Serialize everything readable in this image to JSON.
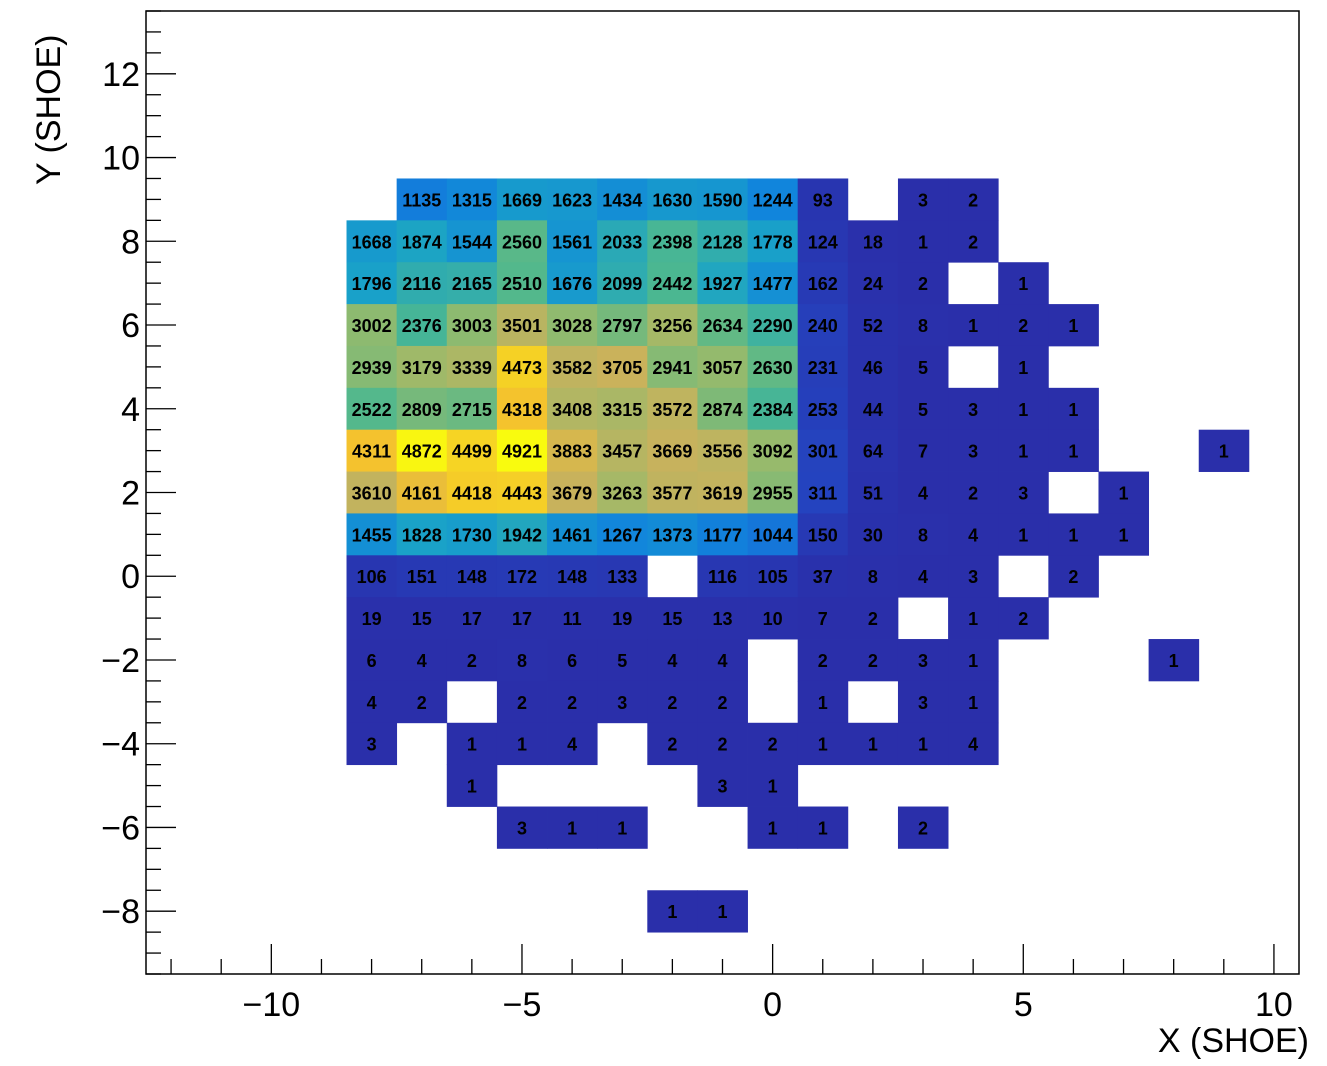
{
  "chart_data": {
    "type": "heatmap",
    "title": "",
    "xlabel": "X (SHOE)",
    "ylabel": "Y (SHOE)",
    "xlim": [
      -12.5,
      10.5
    ],
    "ylim": [
      -9.5,
      13.5
    ],
    "x_ticks": [
      -10,
      -5,
      0,
      5,
      10
    ],
    "y_ticks": [
      -8,
      -6,
      -4,
      -2,
      0,
      2,
      4,
      6,
      8,
      10,
      12
    ],
    "x_tick_labels": [
      "−10",
      "−5",
      "0",
      "5",
      "10"
    ],
    "y_tick_labels": [
      "−8",
      "−6",
      "−4",
      "−2",
      "0",
      "2",
      "4",
      "6",
      "8",
      "10",
      "12"
    ],
    "bin_width": 1,
    "bin_height": 1,
    "colormap": [
      "#2a2faa",
      "#1f57d3",
      "#1184dc",
      "#1aa3c7",
      "#4db88f",
      "#96ba6c",
      "#c9b25c",
      "#f4c22e",
      "#f9fb0e"
    ],
    "z_max": 4921,
    "grid": false,
    "rows": [
      {
        "y": 9,
        "x": [
          -7,
          -6,
          -5,
          -4,
          -3,
          -2,
          -1,
          0,
          1,
          3,
          4
        ],
        "v": [
          1135,
          1315,
          1669,
          1623,
          1434,
          1630,
          1590,
          1244,
          93,
          3,
          2
        ]
      },
      {
        "y": 8,
        "x": [
          -8,
          -7,
          -6,
          -5,
          -4,
          -3,
          -2,
          -1,
          0,
          1,
          2,
          3,
          4
        ],
        "v": [
          1668,
          1874,
          1544,
          2560,
          1561,
          2033,
          2398,
          2128,
          1778,
          124,
          18,
          1,
          2
        ]
      },
      {
        "y": 7,
        "x": [
          -8,
          -7,
          -6,
          -5,
          -4,
          -3,
          -2,
          -1,
          0,
          1,
          2,
          3,
          5
        ],
        "v": [
          1796,
          2116,
          2165,
          2510,
          1676,
          2099,
          2442,
          1927,
          1477,
          162,
          24,
          2,
          1
        ]
      },
      {
        "y": 6,
        "x": [
          -8,
          -7,
          -6,
          -5,
          -4,
          -3,
          -2,
          -1,
          0,
          1,
          2,
          3,
          4,
          5,
          6
        ],
        "v": [
          3002,
          2376,
          3003,
          3501,
          3028,
          2797,
          3256,
          2634,
          2290,
          240,
          52,
          8,
          1,
          2,
          1
        ]
      },
      {
        "y": 5,
        "x": [
          -8,
          -7,
          -6,
          -5,
          -4,
          -3,
          -2,
          -1,
          0,
          1,
          2,
          3,
          5
        ],
        "v": [
          2939,
          3179,
          3339,
          4473,
          3582,
          3705,
          2941,
          3057,
          2630,
          231,
          46,
          5,
          1
        ]
      },
      {
        "y": 4,
        "x": [
          -8,
          -7,
          -6,
          -5,
          -4,
          -3,
          -2,
          -1,
          0,
          1,
          2,
          3,
          4,
          5,
          6
        ],
        "v": [
          2522,
          2809,
          2715,
          4318,
          3408,
          3315,
          3572,
          2874,
          2384,
          253,
          44,
          5,
          3,
          1,
          1
        ]
      },
      {
        "y": 3,
        "x": [
          -8,
          -7,
          -6,
          -5,
          -4,
          -3,
          -2,
          -1,
          0,
          1,
          2,
          3,
          4,
          5,
          6,
          9
        ],
        "v": [
          4311,
          4872,
          4499,
          4921,
          3883,
          3457,
          3669,
          3556,
          3092,
          301,
          64,
          7,
          3,
          1,
          1,
          1
        ]
      },
      {
        "y": 2,
        "x": [
          -8,
          -7,
          -6,
          -5,
          -4,
          -3,
          -2,
          -1,
          0,
          1,
          2,
          3,
          4,
          5,
          7
        ],
        "v": [
          3610,
          4161,
          4418,
          4443,
          3679,
          3263,
          3577,
          3619,
          2955,
          311,
          51,
          4,
          2,
          3,
          1
        ]
      },
      {
        "y": 1,
        "x": [
          -8,
          -7,
          -6,
          -5,
          -4,
          -3,
          -2,
          -1,
          0,
          1,
          2,
          3,
          4,
          5,
          6,
          7
        ],
        "v": [
          1455,
          1828,
          1730,
          1942,
          1461,
          1267,
          1373,
          1177,
          1044,
          150,
          30,
          8,
          4,
          1,
          1,
          1
        ]
      },
      {
        "y": 0,
        "x": [
          -8,
          -7,
          -6,
          -5,
          -4,
          -3,
          -1,
          0,
          1,
          2,
          3,
          4,
          6
        ],
        "v": [
          106,
          151,
          148,
          172,
          148,
          133,
          116,
          105,
          37,
          8,
          4,
          3,
          2
        ]
      },
      {
        "y": -1,
        "x": [
          -8,
          -7,
          -6,
          -5,
          -4,
          -3,
          -2,
          -1,
          0,
          1,
          2,
          4,
          5
        ],
        "v": [
          19,
          15,
          17,
          17,
          11,
          19,
          15,
          13,
          10,
          7,
          2,
          1,
          2
        ]
      },
      {
        "y": -2,
        "x": [
          -8,
          -7,
          -6,
          -5,
          -4,
          -3,
          -2,
          -1,
          1,
          2,
          3,
          4,
          8
        ],
        "v": [
          6,
          4,
          2,
          8,
          6,
          5,
          4,
          4,
          2,
          2,
          3,
          1,
          1
        ]
      },
      {
        "y": -3,
        "x": [
          -8,
          -7,
          -5,
          -4,
          -3,
          -2,
          -1,
          1,
          3,
          4
        ],
        "v": [
          4,
          2,
          2,
          2,
          3,
          2,
          2,
          1,
          3,
          1
        ]
      },
      {
        "y": -4,
        "x": [
          -8,
          -6,
          -5,
          -4,
          -2,
          -1,
          0,
          1,
          2,
          3,
          4
        ],
        "v": [
          3,
          1,
          1,
          4,
          2,
          2,
          2,
          1,
          1,
          1,
          4
        ]
      },
      {
        "y": -5,
        "x": [
          -6,
          -1,
          0
        ],
        "v": [
          1,
          3,
          1
        ]
      },
      {
        "y": -6,
        "x": [
          -5,
          -4,
          -3,
          0,
          1,
          3
        ],
        "v": [
          3,
          1,
          1,
          1,
          1,
          2
        ]
      },
      {
        "y": -8,
        "x": [
          -2,
          -1
        ],
        "v": [
          1,
          1
        ]
      }
    ]
  }
}
